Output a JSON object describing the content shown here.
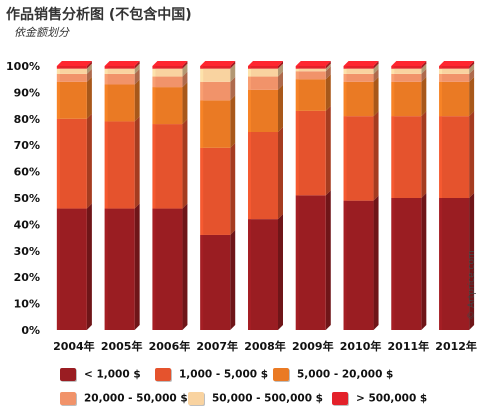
{
  "title": "作品销售分析图 (不包含中国)",
  "subtitle": "依金额划分",
  "watermark": "© Artprice.com",
  "colors": {
    "lt_1000": "#9a1d22",
    "1000_5000": "#e5532d",
    "5000_20000": "#ea7a24",
    "20000_50000": "#f1936a",
    "50000_500000": "#f9d3a0",
    "gt_500000": "#e3212a"
  },
  "legend": [
    {
      "label": "< 1,000 $",
      "color": "#9a1d22"
    },
    {
      "label": "1,000 - 5,000 $",
      "color": "#e5532d"
    },
    {
      "label": "5,000 - 20,000 $",
      "color": "#ea7a24"
    },
    {
      "label": "20,000 - 50,000 $",
      "color": "#f1936a"
    },
    {
      "label": "50,000 - 500,000 $",
      "color": "#f9d3a0"
    },
    {
      "label": "> 500,000 $",
      "color": "#e3212a"
    }
  ],
  "chart_data": {
    "type": "bar",
    "stacked": true,
    "categories": [
      "2004年",
      "2005年",
      "2006年",
      "2007年",
      "2008年",
      "2009年",
      "2010年",
      "2011年",
      "2012年"
    ],
    "ylim": [
      0,
      100
    ],
    "yticks": [
      "0%",
      "10%",
      "20%",
      "30%",
      "40%",
      "50%",
      "60%",
      "70%",
      "80%",
      "90%",
      "100%"
    ],
    "series": [
      {
        "name": "< 1,000 $",
        "values": [
          46,
          46,
          46,
          36,
          42,
          51,
          49,
          50,
          50
        ]
      },
      {
        "name": "1,000 - 5,000 $",
        "values": [
          34,
          33,
          32,
          33,
          33,
          32,
          32,
          31,
          31
        ]
      },
      {
        "name": "5,000 - 20,000 $",
        "values": [
          14,
          14,
          14,
          18,
          16,
          12,
          13,
          13,
          13
        ]
      },
      {
        "name": "20,000 - 50,000 $",
        "values": [
          3,
          4,
          4,
          7,
          5,
          3,
          3,
          3,
          3
        ]
      },
      {
        "name": "50,000 - 500,000 $",
        "values": [
          2,
          2,
          3,
          5,
          3,
          1,
          2,
          2,
          2
        ]
      },
      {
        "name": "> 500,000 $",
        "values": [
          1,
          1,
          1,
          1,
          1,
          1,
          1,
          1,
          1
        ]
      }
    ]
  }
}
